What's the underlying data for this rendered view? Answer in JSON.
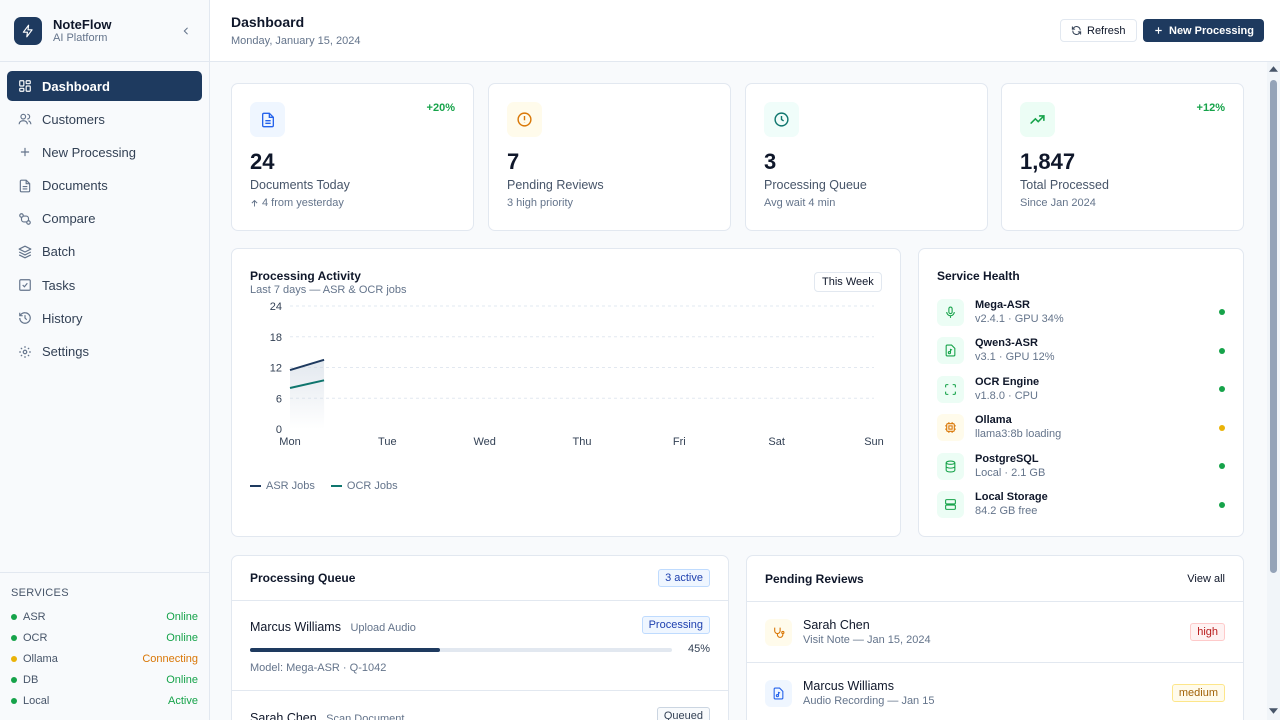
{
  "brand": {
    "name": "NoteFlow",
    "subtitle": "AI Platform"
  },
  "nav": [
    {
      "label": "Dashboard",
      "icon": "dashboard-icon",
      "active": true
    },
    {
      "label": "Customers",
      "icon": "users-icon"
    },
    {
      "label": "New Processing",
      "icon": "plus-icon"
    },
    {
      "label": "Documents",
      "icon": "document-icon"
    },
    {
      "label": "Compare",
      "icon": "compare-icon"
    },
    {
      "label": "Batch",
      "icon": "layers-icon"
    },
    {
      "label": "Tasks",
      "icon": "checkbox-icon"
    },
    {
      "label": "History",
      "icon": "history-icon"
    },
    {
      "label": "Settings",
      "icon": "gear-icon"
    }
  ],
  "services": {
    "title": "SERVICES",
    "items": [
      {
        "name": "ASR",
        "status": "Online",
        "color": "#16a34a"
      },
      {
        "name": "OCR",
        "status": "Online",
        "color": "#16a34a"
      },
      {
        "name": "Ollama",
        "status": "Connecting",
        "color": "#d97706"
      },
      {
        "name": "DB",
        "status": "Online",
        "color": "#16a34a"
      },
      {
        "name": "Local",
        "status": "Active",
        "color": "#16a34a"
      }
    ]
  },
  "header": {
    "title": "Dashboard",
    "date": "Monday, January 15, 2024",
    "refresh_label": "Refresh",
    "new_label": "New Processing"
  },
  "stats": [
    {
      "value": "24",
      "label": "Documents Today",
      "sub": "4 from yesterday",
      "trend": "+20%",
      "icon": "document-icon",
      "icon_bg": "#eff6ff",
      "icon_color": "#2563eb"
    },
    {
      "value": "7",
      "label": "Pending Reviews",
      "sub": "3 high priority",
      "trend": "",
      "icon": "alert-circle-icon",
      "icon_bg": "#fffbeb",
      "icon_color": "#d97706"
    },
    {
      "value": "3",
      "label": "Processing Queue",
      "sub": "Avg wait 4 min",
      "trend": "",
      "icon": "clock-icon",
      "icon_bg": "#f0fdfa",
      "icon_color": "#0f766e"
    },
    {
      "value": "1,847",
      "label": "Total Processed",
      "sub": "Since Jan 2024",
      "trend": "+12%",
      "icon": "trending-up-icon",
      "icon_bg": "#ecfdf5",
      "icon_color": "#16a34a"
    }
  ],
  "activity": {
    "title": "Processing Activity",
    "subtitle": "Last 7 days — ASR & OCR jobs",
    "range_label": "This Week"
  },
  "chart_data": {
    "type": "area",
    "categories": [
      "Mon",
      "Tue",
      "Wed",
      "Thu",
      "Fri",
      "Sat",
      "Sun"
    ],
    "y_ticks": [
      0,
      6,
      12,
      18,
      24
    ],
    "ylim": [
      0,
      24
    ],
    "series": [
      {
        "name": "ASR Jobs",
        "color": "#1e3a5f",
        "values": [
          [
            0,
            11.5
          ],
          [
            0.35,
            13.5
          ]
        ]
      },
      {
        "name": "OCR Jobs",
        "color": "#0f766e",
        "values": [
          [
            0,
            8
          ],
          [
            0.35,
            9.5
          ]
        ]
      }
    ],
    "grid": true,
    "legend": "bottom-left"
  },
  "health": {
    "title": "Service Health",
    "items": [
      {
        "name": "Mega-ASR",
        "meta": "v2.4.1 · GPU 34%",
        "icon": "microphone-icon",
        "bg": "#ecfdf5",
        "fg": "#16a34a",
        "dot": "#16a34a"
      },
      {
        "name": "Qwen3-ASR",
        "meta": "v3.1 · GPU 12%",
        "icon": "audio-file-icon",
        "bg": "#ecfdf5",
        "fg": "#16a34a",
        "dot": "#16a34a"
      },
      {
        "name": "OCR Engine",
        "meta": "v1.8.0 · CPU",
        "icon": "scan-icon",
        "bg": "#ecfdf5",
        "fg": "#16a34a",
        "dot": "#16a34a"
      },
      {
        "name": "Ollama",
        "meta": "llama3:8b loading",
        "icon": "cpu-icon",
        "bg": "#fffbeb",
        "fg": "#d97706",
        "dot": "#eab308"
      },
      {
        "name": "PostgreSQL",
        "meta": "Local · 2.1 GB",
        "icon": "database-icon",
        "bg": "#ecfdf5",
        "fg": "#16a34a",
        "dot": "#16a34a"
      },
      {
        "name": "Local Storage",
        "meta": "84.2 GB free",
        "icon": "server-icon",
        "bg": "#ecfdf5",
        "fg": "#16a34a",
        "dot": "#16a34a"
      }
    ]
  },
  "queue": {
    "title": "Processing Queue",
    "badge": "3 active",
    "items": [
      {
        "name": "Marcus Williams",
        "type": "Upload Audio",
        "status": "Processing",
        "progress": 45,
        "progress_label": "45%",
        "meta": "Model: Mega-ASR · Q-1042"
      },
      {
        "name": "Sarah Chen",
        "type": "Scan Document",
        "status": "Queued"
      }
    ]
  },
  "reviews": {
    "title": "Pending Reviews",
    "view_all": "View all",
    "items": [
      {
        "name": "Sarah Chen",
        "meta": "Visit Note — Jan 15, 2024",
        "priority": "high",
        "icon": "stethoscope-icon",
        "bg": "#fffbeb",
        "fg": "#d97706"
      },
      {
        "name": "Marcus Williams",
        "meta": "Audio Recording — Jan 15",
        "priority": "medium",
        "icon": "audio-file-icon",
        "bg": "#eff6ff",
        "fg": "#2563eb"
      }
    ]
  }
}
